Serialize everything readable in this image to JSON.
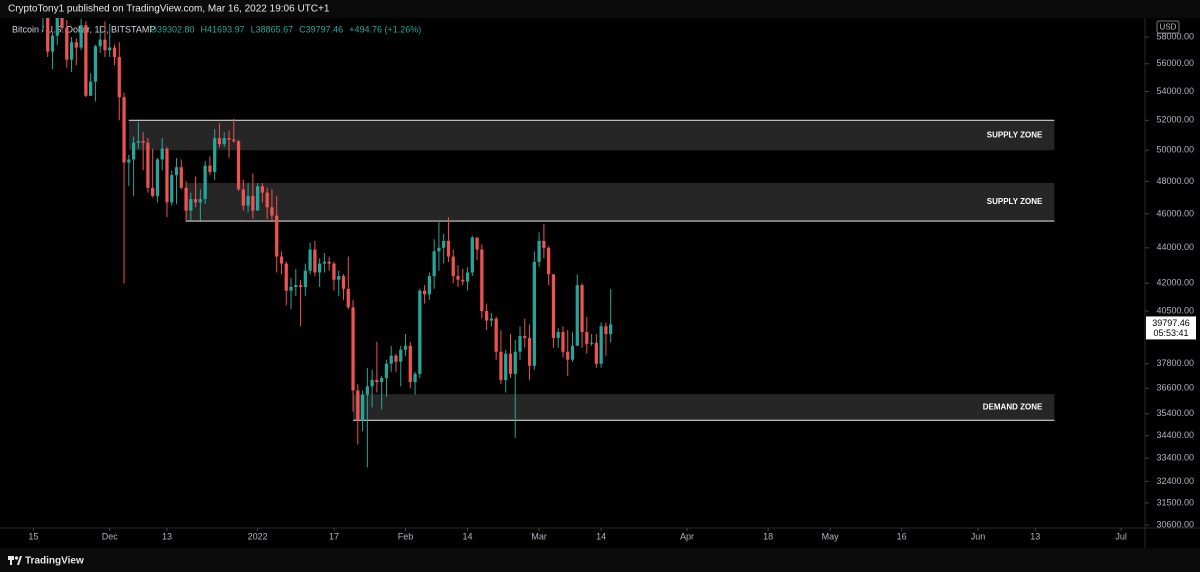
{
  "header": {
    "published": "CryptoTony1 published on TradingView.com, Mar 16, 2022 19:06 UTC+1"
  },
  "footer": {
    "brand": "TradingView"
  },
  "chart_data": {
    "type": "candlestick",
    "symbol": "Bitcoin / U.S. Dollar, 1D, BITSTAMP",
    "legend": [
      "O39302.80",
      "H41693.97",
      "L38865.67",
      "C39797.46",
      "+494.76 (+1.26%)"
    ],
    "currency": "USD",
    "last_price": {
      "label": "39797.46",
      "countdown": "05:53:41"
    },
    "up_color": "#26a69a",
    "down_color": "#ef5350",
    "log_scale": true,
    "ylim": [
      30480,
      59460
    ],
    "yticks": [
      {
        "value": 58000,
        "label": "58000.00"
      },
      {
        "value": 56000,
        "label": "56000.00"
      },
      {
        "value": 54000,
        "label": "54000.00"
      },
      {
        "value": 52000,
        "label": "52000.00"
      },
      {
        "value": 50000,
        "label": "50000.00"
      },
      {
        "value": 48000,
        "label": "48000.00"
      },
      {
        "value": 46000,
        "label": "46000.00"
      },
      {
        "value": 44000,
        "label": "44000.00"
      },
      {
        "value": 42000,
        "label": "42000.00"
      },
      {
        "value": 40500,
        "label": "40500.00"
      },
      {
        "value": 37800,
        "label": "37800.00"
      },
      {
        "value": 36600,
        "label": "36600.00"
      },
      {
        "value": 35400,
        "label": "35400.00"
      },
      {
        "value": 34400,
        "label": "34400.00"
      },
      {
        "value": 33400,
        "label": "33400.00"
      },
      {
        "value": 32400,
        "label": "32400.00"
      },
      {
        "value": 31500,
        "label": "31500.00"
      },
      {
        "value": 30600,
        "label": "30600.00"
      }
    ],
    "xlim": [
      "2021-11-08",
      "2022-07-06"
    ],
    "xticks": [
      {
        "value": "2021-11-15",
        "label": "15"
      },
      {
        "value": "2021-12-01",
        "label": "Dec"
      },
      {
        "value": "2021-12-13",
        "label": "13"
      },
      {
        "value": "2022-01-01",
        "label": "2022"
      },
      {
        "value": "2022-01-17",
        "label": "17"
      },
      {
        "value": "2022-02-01",
        "label": "Feb"
      },
      {
        "value": "2022-02-14",
        "label": "14"
      },
      {
        "value": "2022-03-01",
        "label": "Mar"
      },
      {
        "value": "2022-03-14",
        "label": "14"
      },
      {
        "value": "2022-04-01",
        "label": "Apr"
      },
      {
        "value": "2022-04-18",
        "label": "18"
      },
      {
        "value": "2022-05-01",
        "label": "May"
      },
      {
        "value": "2022-05-16",
        "label": "16"
      },
      {
        "value": "2022-06-01",
        "label": "Jun"
      },
      {
        "value": "2022-06-13",
        "label": "13"
      },
      {
        "value": "2022-07-01",
        "label": "Jul"
      }
    ],
    "zones": [
      {
        "label": "SUPPLY ZONE",
        "top": 52000,
        "bottom": 50000,
        "start": "2021-12-05",
        "end": "2022-06-17",
        "edge": "top"
      },
      {
        "label": "SUPPLY ZONE",
        "top": 47900,
        "bottom": 45570,
        "start": "2021-12-17",
        "end": "2022-06-17",
        "edge": "bottom"
      },
      {
        "label": "DEMAND ZONE",
        "top": 36320,
        "bottom": 35100,
        "start": "2022-01-21",
        "end": "2022-06-17",
        "edge": "bottom"
      }
    ],
    "x": [
      "2021-11-17",
      "2021-11-18",
      "2021-11-19",
      "2021-11-20",
      "2021-11-21",
      "2021-11-22",
      "2021-11-23",
      "2021-11-24",
      "2021-11-25",
      "2021-11-26",
      "2021-11-27",
      "2021-11-28",
      "2021-11-29",
      "2021-11-30",
      "2021-12-01",
      "2021-12-02",
      "2021-12-03",
      "2021-12-04",
      "2021-12-05",
      "2021-12-06",
      "2021-12-07",
      "2021-12-08",
      "2021-12-09",
      "2021-12-10",
      "2021-12-11",
      "2021-12-12",
      "2021-12-13",
      "2021-12-14",
      "2021-12-15",
      "2021-12-16",
      "2021-12-17",
      "2021-12-18",
      "2021-12-19",
      "2021-12-20",
      "2021-12-21",
      "2021-12-22",
      "2021-12-23",
      "2021-12-24",
      "2021-12-25",
      "2021-12-26",
      "2021-12-27",
      "2021-12-28",
      "2021-12-29",
      "2021-12-30",
      "2021-12-31",
      "2022-01-01",
      "2022-01-02",
      "2022-01-03",
      "2022-01-04",
      "2022-01-05",
      "2022-01-06",
      "2022-01-07",
      "2022-01-08",
      "2022-01-09",
      "2022-01-10",
      "2022-01-11",
      "2022-01-12",
      "2022-01-13",
      "2022-01-14",
      "2022-01-15",
      "2022-01-16",
      "2022-01-17",
      "2022-01-18",
      "2022-01-19",
      "2022-01-20",
      "2022-01-21",
      "2022-01-22",
      "2022-01-23",
      "2022-01-24",
      "2022-01-25",
      "2022-01-26",
      "2022-01-27",
      "2022-01-28",
      "2022-01-29",
      "2022-01-30",
      "2022-01-31",
      "2022-02-01",
      "2022-02-02",
      "2022-02-03",
      "2022-02-04",
      "2022-02-05",
      "2022-02-06",
      "2022-02-07",
      "2022-02-08",
      "2022-02-09",
      "2022-02-10",
      "2022-02-11",
      "2022-02-12",
      "2022-02-13",
      "2022-02-14",
      "2022-02-15",
      "2022-02-16",
      "2022-02-17",
      "2022-02-18",
      "2022-02-19",
      "2022-02-20",
      "2022-02-21",
      "2022-02-22",
      "2022-02-23",
      "2022-02-24",
      "2022-02-25",
      "2022-02-26",
      "2022-02-27",
      "2022-02-28",
      "2022-03-01",
      "2022-03-02",
      "2022-03-03",
      "2022-03-04",
      "2022-03-05",
      "2022-03-06",
      "2022-03-07",
      "2022-03-08",
      "2022-03-09",
      "2022-03-10",
      "2022-03-11",
      "2022-03-12",
      "2022-03-13",
      "2022-03-14",
      "2022-03-15",
      "2022-03-16"
    ],
    "open": [
      60100,
      60400,
      56900,
      58100,
      59700,
      58700,
      56300,
      57600,
      57200,
      58900,
      53700,
      54700,
      57300,
      57800,
      57000,
      57200,
      56500,
      53600,
      49200,
      49400,
      50500,
      50600,
      50500,
      47600,
      47100,
      49400,
      50100,
      46700,
      48400,
      48900,
      47600,
      46200,
      46900,
      46700,
      46900,
      49000,
      48600,
      50800,
      50400,
      50800,
      50700,
      50600,
      47500,
      46500,
      47100,
      46200,
      47700,
      47300,
      46400,
      45900,
      43500,
      43100,
      41600,
      41800,
      41900,
      41800,
      42700,
      43900,
      42600,
      43100,
      43200,
      43100,
      42200,
      42400,
      41700,
      40700,
      36500,
      35100,
      36300,
      36700,
      37000,
      36900,
      37100,
      37800,
      38200,
      37900,
      38500,
      38700,
      36900,
      37300,
      41600,
      41400,
      42400,
      43800,
      44000,
      44400,
      43500,
      42400,
      42200,
      42100,
      42600,
      44600,
      43900,
      40500,
      40000,
      40100,
      38400,
      37000,
      38300,
      37300,
      38400,
      39200,
      39100,
      37700,
      43200,
      44400,
      44000,
      42500,
      39100,
      39400,
      38400,
      38000,
      38700,
      41900,
      39400,
      38800,
      38850,
      37800,
      39700,
      39302.8
    ],
    "high": [
      60800,
      60900,
      58400,
      59800,
      60000,
      59300,
      58000,
      57900,
      59400,
      59200,
      55300,
      57400,
      58800,
      59200,
      59000,
      57400,
      57600,
      53900,
      49700,
      50900,
      51900,
      51200,
      50800,
      50100,
      49500,
      50800,
      50200,
      48700,
      49500,
      49400,
      48000,
      47300,
      48300,
      47500,
      49300,
      49600,
      51400,
      51800,
      51200,
      51300,
      52100,
      50700,
      48100,
      47900,
      48500,
      47900,
      47900,
      47600,
      47500,
      47100,
      43800,
      43200,
      42300,
      42800,
      42200,
      43100,
      44300,
      44400,
      43400,
      43700,
      43500,
      43200,
      42700,
      42500,
      43500,
      41100,
      36800,
      36500,
      37600,
      37500,
      38900,
      37200,
      38000,
      38700,
      38300,
      38700,
      39300,
      38900,
      37400,
      41700,
      41900,
      42600,
      44500,
      45500,
      44800,
      45800,
      43900,
      43000,
      42800,
      42900,
      44700,
      44600,
      44200,
      40900,
      40400,
      40200,
      39500,
      38500,
      39300,
      39000,
      39700,
      40100,
      39800,
      43800,
      44900,
      45400,
      44100,
      42500,
      39600,
      39700,
      39500,
      39400,
      42500,
      42000,
      40200,
      39300,
      39300,
      39900,
      39900,
      41693.97
    ],
    "low": [
      58400,
      56500,
      55600,
      57400,
      58500,
      55700,
      55400,
      55900,
      57000,
      53600,
      53700,
      53300,
      56800,
      56500,
      56500,
      55900,
      52000,
      42000,
      47700,
      47100,
      50100,
      48700,
      47300,
      47000,
      46700,
      48700,
      45800,
      46500,
      46600,
      47500,
      45500,
      45600,
      46400,
      45600,
      46600,
      48400,
      48100,
      50200,
      50200,
      49500,
      50500,
      47400,
      46200,
      46100,
      45700,
      46200,
      46700,
      45700,
      45500,
      42600,
      42500,
      40800,
      40600,
      41300,
      39700,
      41300,
      42500,
      42400,
      41800,
      42600,
      42700,
      41600,
      41300,
      41100,
      40600,
      35500,
      34000,
      34600,
      33000,
      35700,
      36400,
      35600,
      36200,
      37400,
      37400,
      36700,
      38200,
      36600,
      36300,
      37100,
      40900,
      41100,
      41700,
      42700,
      43100,
      43200,
      42000,
      41800,
      41900,
      41600,
      42400,
      43300,
      40100,
      39500,
      39700,
      38000,
      36800,
      36400,
      37100,
      34300,
      38000,
      38600,
      37000,
      37500,
      42900,
      43400,
      41900,
      38600,
      38600,
      38100,
      37200,
      37900,
      38700,
      38600,
      38300,
      38700,
      37600,
      37600,
      38200,
      38865.67
    ],
    "close": [
      60400,
      56900,
      58100,
      59700,
      58700,
      56300,
      57600,
      57200,
      58900,
      53700,
      54700,
      57300,
      57800,
      57000,
      57200,
      56500,
      53600,
      49200,
      49400,
      50500,
      50600,
      50500,
      47600,
      47100,
      49400,
      50100,
      46700,
      48400,
      48900,
      47600,
      46200,
      46900,
      46700,
      46900,
      49000,
      48600,
      50800,
      50400,
      50800,
      50700,
      50600,
      47500,
      46500,
      47100,
      46200,
      47700,
      47300,
      46400,
      45900,
      43500,
      43100,
      41600,
      41800,
      41900,
      41800,
      42700,
      43900,
      42600,
      43100,
      43200,
      43100,
      42200,
      42400,
      41700,
      40700,
      36500,
      35100,
      36300,
      36700,
      37000,
      36900,
      37100,
      37800,
      38200,
      37900,
      38500,
      38700,
      36900,
      37300,
      41600,
      41400,
      42400,
      43800,
      44000,
      44400,
      43500,
      42400,
      42200,
      42100,
      42600,
      44600,
      43900,
      40500,
      40000,
      40100,
      38400,
      37000,
      38300,
      37300,
      38400,
      39200,
      39100,
      37700,
      43200,
      44400,
      44000,
      42500,
      39100,
      39400,
      38400,
      38000,
      38700,
      41900,
      39400,
      38800,
      38850,
      37800,
      39700,
      39300,
      39797.46
    ]
  }
}
